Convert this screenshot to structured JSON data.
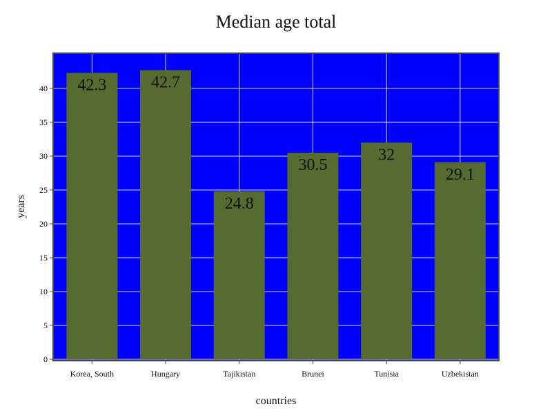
{
  "chart_data": {
    "type": "bar",
    "title": "Median age total",
    "xlabel": "countries",
    "ylabel": "years",
    "categories": [
      "Korea, South",
      "Hungary",
      "Tajikistan",
      "Brunei",
      "Tunisia",
      "Uzbekistan"
    ],
    "values": [
      42.3,
      42.7,
      24.8,
      30.5,
      32,
      29.1
    ],
    "data_labels": [
      "42.3",
      "42.7",
      "24.8",
      "30.5",
      "32",
      "29.1"
    ],
    "ylim": [
      0,
      45
    ],
    "yticks": [
      0,
      5,
      10,
      15,
      20,
      25,
      30,
      35,
      40
    ],
    "grid": true,
    "legend": "none",
    "colors": {
      "plot_background": "#0000ff",
      "bar": "#556b2f",
      "grid": "#d9d9d9"
    }
  }
}
